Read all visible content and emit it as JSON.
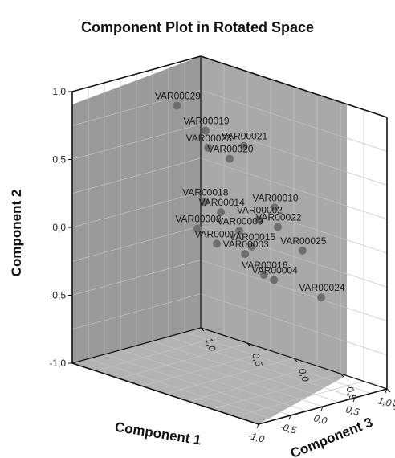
{
  "chart_data": {
    "type": "scatter",
    "title": "Component Plot in Rotated Space",
    "xlabel": "Component 1",
    "ylabel": "Component 2",
    "zlabel": "Component 3",
    "xlim": [
      -1.0,
      1.0
    ],
    "ylim": [
      -1.0,
      1.0
    ],
    "zlim": [
      -1.0,
      1.0
    ],
    "x_ticks": [
      "-1,0",
      "-0,5",
      "0,0",
      "0,5",
      "1,0"
    ],
    "y_ticks": [
      "-1,0",
      "-0,5",
      "0,0",
      "0,5",
      "1,0"
    ],
    "z_ticks": [
      "1,0",
      "0,5",
      "0,0",
      "-0,5",
      "-1,0"
    ],
    "points": [
      {
        "label": "VAR00029",
        "x": 0.05,
        "y": 0.85,
        "z": 0.6
      },
      {
        "label": "VAR00019",
        "x": 0.35,
        "y": 0.65,
        "z": 0.5
      },
      {
        "label": "VAR00021",
        "x": 0.8,
        "y": 0.5,
        "z": 0.4
      },
      {
        "label": "VAR00020",
        "x": 0.0,
        "y": 0.6,
        "z": 0.0
      },
      {
        "label": "VAR00023",
        "x": 0.1,
        "y": 0.6,
        "z": 0.3
      },
      {
        "label": "VAR00018",
        "x": -0.1,
        "y": 0.25,
        "z": 0.2
      },
      {
        "label": "VAR00010",
        "x": 0.7,
        "y": 0.15,
        "z": 0.0
      },
      {
        "label": "VAR00008",
        "x": -0.5,
        "y": 0.15,
        "z": 0.0
      },
      {
        "label": "VAR00014",
        "x": 0.3,
        "y": 0.1,
        "z": 0.3
      },
      {
        "label": "VAR00002",
        "x": 0.6,
        "y": 0.05,
        "z": 0.1
      },
      {
        "label": "VAR00017",
        "x": -0.2,
        "y": 0.0,
        "z": 0.0
      },
      {
        "label": "VAR00009",
        "x": 0.15,
        "y": 0.05,
        "z": 0.0
      },
      {
        "label": "VAR00022",
        "x": 0.75,
        "y": 0.0,
        "z": 0.0
      },
      {
        "label": "VAR00003",
        "x": -0.05,
        "y": -0.05,
        "z": -0.2
      },
      {
        "label": "VAR00015",
        "x": 0.2,
        "y": -0.05,
        "z": -0.1
      },
      {
        "label": "VAR00025",
        "x": 0.7,
        "y": -0.1,
        "z": -0.3
      },
      {
        "label": "VAR00016",
        "x": 0.1,
        "y": -0.2,
        "z": -0.3
      },
      {
        "label": "VAR00004",
        "x": 0.4,
        "y": -0.3,
        "z": -0.2
      },
      {
        "label": "VAR00024",
        "x": 0.7,
        "y": -0.4,
        "z": -0.5
      }
    ],
    "grid": true,
    "legend": "none",
    "colors": {
      "back_wall": "#9a9a9a",
      "side_wall": "#a9a9a9",
      "floor": "#b3b3b3",
      "point": "#6e6e6e",
      "edge": "#111111",
      "grid": "#c4c4c4"
    }
  }
}
